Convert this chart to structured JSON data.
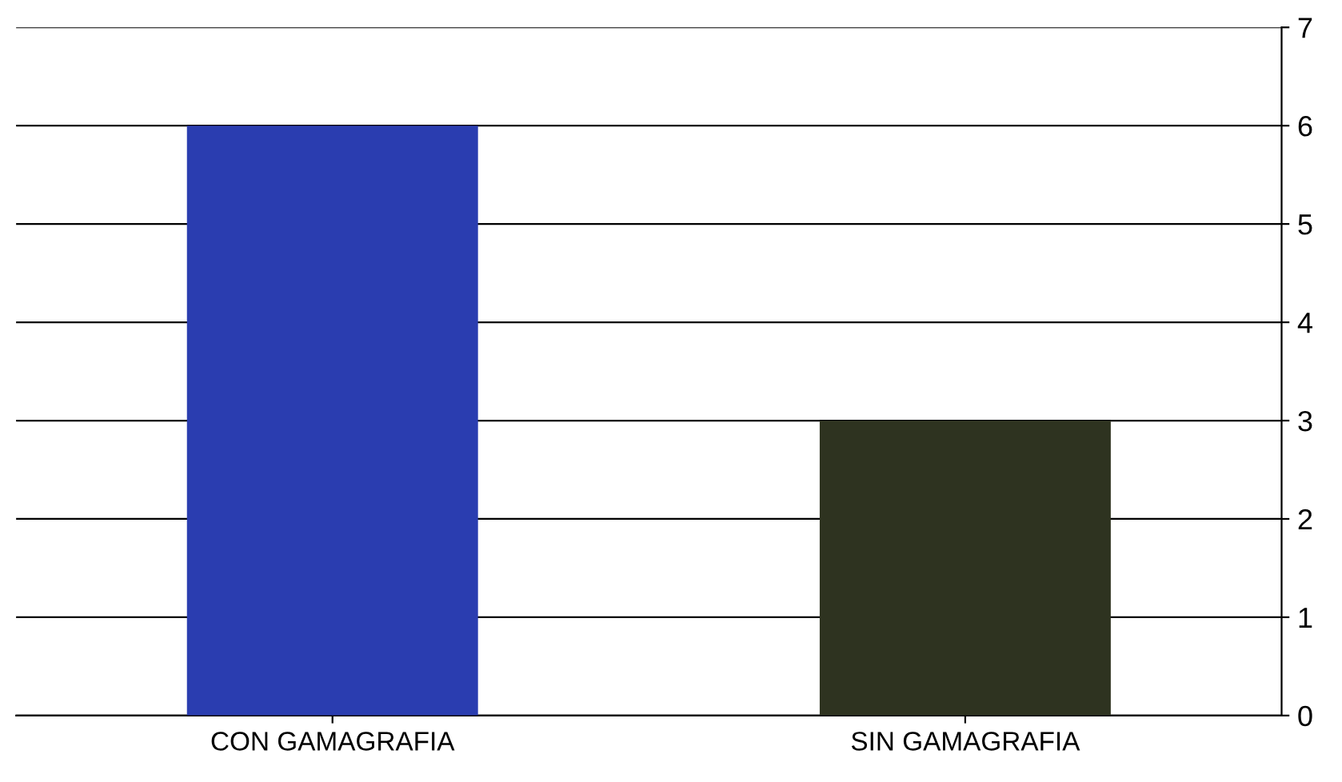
{
  "chart_data": {
    "type": "bar",
    "categories": [
      "CON GAMAGRAFIA",
      "SIN GAMAGRAFIA"
    ],
    "values": [
      6,
      3
    ],
    "colors": [
      "#2a3db0",
      "#2e3320"
    ],
    "ylim": [
      0,
      7
    ],
    "yticks": [
      0,
      1,
      2,
      3,
      4,
      5,
      6,
      7
    ],
    "grid": "y"
  }
}
